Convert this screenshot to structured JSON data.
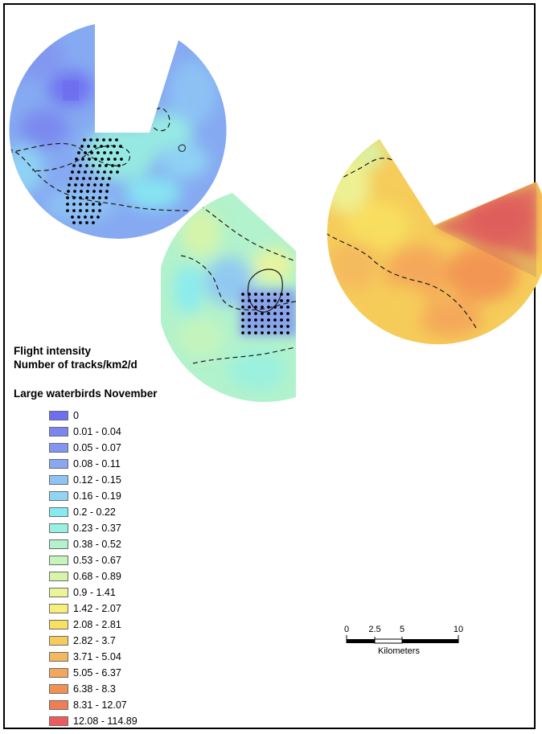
{
  "legend": {
    "title_line1": "Flight intensity",
    "title_line2": "Number of tracks/km2/d",
    "subtitle": "Large waterbirds November",
    "classes": [
      {
        "label": "0",
        "color": "#6e6ef0"
      },
      {
        "label": "0.01 - 0.04",
        "color": "#7a86ee"
      },
      {
        "label": "0.05 - 0.07",
        "color": "#8296f0"
      },
      {
        "label": "0.08 - 0.11",
        "color": "#8aa8f2"
      },
      {
        "label": "0.12 - 0.15",
        "color": "#8ec4f4"
      },
      {
        "label": "0.16 - 0.19",
        "color": "#90d6f4"
      },
      {
        "label": "0.2 - 0.22",
        "color": "#86eaf2"
      },
      {
        "label": "0.23 - 0.37",
        "color": "#98f0e0"
      },
      {
        "label": "0.38 - 0.52",
        "color": "#b2f2cc"
      },
      {
        "label": "0.53 - 0.67",
        "color": "#c6f4bc"
      },
      {
        "label": "0.68 - 0.89",
        "color": "#d8f4a8"
      },
      {
        "label": "0.9 - 1.41",
        "color": "#ecf49a"
      },
      {
        "label": "1.42 - 2.07",
        "color": "#f6f07a"
      },
      {
        "label": "2.08 - 2.81",
        "color": "#f8e060"
      },
      {
        "label": "2.82 - 3.7",
        "color": "#f6cc5a"
      },
      {
        "label": "3.71 - 5.04",
        "color": "#f4b85e"
      },
      {
        "label": "5.05 - 6.37",
        "color": "#f4a65a"
      },
      {
        "label": "6.38 - 8.3",
        "color": "#f29252"
      },
      {
        "label": "8.31 - 12.07",
        "color": "#f27c56"
      },
      {
        "label": "12.08 - 114.89",
        "color": "#ec5a5a"
      }
    ]
  },
  "scalebar": {
    "ticks": [
      "0",
      "2.5",
      "5",
      "10"
    ],
    "tick_km": [
      0,
      2.5,
      5,
      10
    ],
    "unit": "Kilometers"
  },
  "map": {
    "radar_sectors": [
      {
        "id": "radar-west",
        "base_color": "#86aaf2",
        "blotch_colors": [
          "#6e6ef0",
          "#8296f0",
          "#90d6f4",
          "#98f0e0",
          "#8ec4f4"
        ]
      },
      {
        "id": "radar-center",
        "base_color": "#b2f2cc",
        "blotch_colors": [
          "#86eaf2",
          "#c6f4bc",
          "#d8f4a8",
          "#98f0e0",
          "#8ec4f4"
        ]
      },
      {
        "id": "radar-east",
        "base_color": "#f6cc5a",
        "blotch_colors": [
          "#f4b85e",
          "#f8e060",
          "#f4a65a",
          "#ecf49a",
          "#f29252"
        ]
      }
    ],
    "depth_contour_style": "dashed",
    "wind_farm_markers": "dotted grid of turbine positions"
  }
}
